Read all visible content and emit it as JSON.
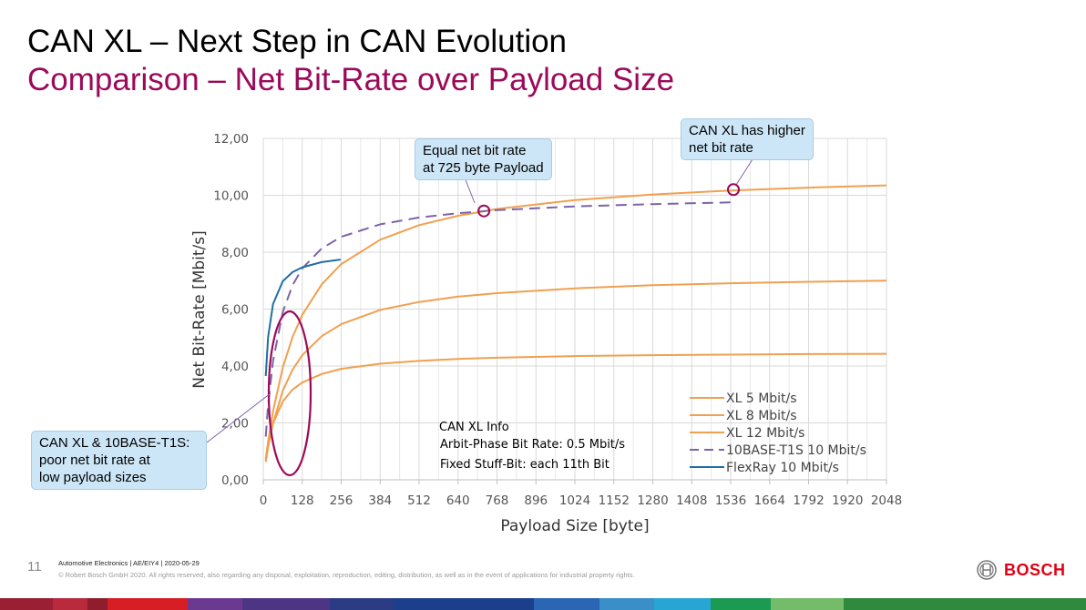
{
  "header": {
    "title": "CAN XL – Next Step in CAN Evolution",
    "subtitle": "Comparison – Net Bit-Rate over Payload Size"
  },
  "colors": {
    "title": "#000000",
    "subtitle": "#9b0a5a",
    "xl": "#f0a050",
    "tenbase": "#7d64a8",
    "flexray": "#1f6fa3",
    "marker": "#9b0a5a",
    "callout_bg": "#cde6f7"
  },
  "chart_data": {
    "type": "line",
    "title": "",
    "xlabel": "Payload Size [byte]",
    "ylabel": "Net Bit-Rate  [Mbit/s]",
    "xlim": [
      0,
      2048
    ],
    "ylim": [
      0,
      12
    ],
    "x_ticks": [
      "0",
      "128",
      "256",
      "384",
      "512",
      "640",
      "768",
      "896",
      "1024",
      "1152",
      "1280",
      "1408",
      "1536",
      "1664",
      "1792",
      "1920",
      "2048"
    ],
    "y_ticks": [
      "0,00",
      "2,00",
      "4,00",
      "6,00",
      "8,00",
      "10,00",
      "12,00"
    ],
    "grid": true,
    "legend_position": "bottom-right",
    "series": [
      {
        "name": "XL 5 Mbit/s",
        "color": "#f0a050",
        "dash": false,
        "x": [
          8,
          16,
          32,
          64,
          96,
          128,
          192,
          256,
          384,
          512,
          640,
          768,
          1024,
          1280,
          1536,
          1792,
          2048
        ],
        "y": [
          0.74,
          1.27,
          1.98,
          2.76,
          3.17,
          3.42,
          3.72,
          3.9,
          4.08,
          4.18,
          4.25,
          4.29,
          4.35,
          4.38,
          4.4,
          4.42,
          4.43
        ]
      },
      {
        "name": "XL 8 Mbit/s",
        "color": "#f0a050",
        "dash": false,
        "x": [
          8,
          16,
          32,
          64,
          96,
          128,
          192,
          256,
          384,
          512,
          640,
          768,
          1024,
          1280,
          1536,
          1792,
          2048
        ],
        "y": [
          0.63,
          1.15,
          1.99,
          3.13,
          3.87,
          4.38,
          5.05,
          5.47,
          5.97,
          6.25,
          6.44,
          6.56,
          6.73,
          6.84,
          6.91,
          6.96,
          7.0
        ]
      },
      {
        "name": "XL 12 Mbit/s",
        "color": "#f0a050",
        "dash": false,
        "x": [
          8,
          16,
          32,
          64,
          96,
          128,
          192,
          256,
          384,
          512,
          640,
          768,
          1024,
          1280,
          1536,
          1792,
          2048
        ],
        "y": [
          0.72,
          1.35,
          2.41,
          3.95,
          5.02,
          5.8,
          6.87,
          7.58,
          8.44,
          8.95,
          9.28,
          9.52,
          9.83,
          10.03,
          10.17,
          10.27,
          10.35
        ]
      },
      {
        "name": "10BASE-T1S 10 Mbit/s",
        "color": "#7d64a8",
        "dash": true,
        "x": [
          8,
          16,
          32,
          64,
          96,
          128,
          192,
          256,
          384,
          512,
          640,
          768,
          1024,
          1280,
          1536
        ],
        "y": [
          1.52,
          2.65,
          4.18,
          5.9,
          6.84,
          7.43,
          8.13,
          8.54,
          8.98,
          9.22,
          9.37,
          9.48,
          9.61,
          9.69,
          9.75
        ]
      },
      {
        "name": "FlexRay 10 Mbit/s",
        "color": "#1f6fa3",
        "dash": false,
        "x": [
          8,
          16,
          32,
          64,
          96,
          128,
          192,
          254
        ],
        "y": [
          3.65,
          5.02,
          6.18,
          6.98,
          7.3,
          7.47,
          7.65,
          7.74
        ]
      }
    ],
    "markers": [
      {
        "label": "equal-point",
        "x": 725,
        "y": 9.45
      },
      {
        "label": "higher-point",
        "x": 1545,
        "y": 10.2
      }
    ],
    "annotations": {
      "equal": [
        "Equal net bit rate",
        "at 725 byte Payload"
      ],
      "higher": [
        "CAN XL has higher",
        "net bit rate"
      ],
      "poor": [
        "CAN XL & 10BASE-T1S:",
        "poor net bit rate at",
        "low payload sizes"
      ],
      "info": [
        "CAN XL Info",
        "Arbit-Phase Bit Rate: 0.5 Mbit/s",
        "Fixed Stuff-Bit: each 11th Bit"
      ]
    }
  },
  "footer": {
    "page_number": "11",
    "line1": "Automotive Electronics | AE/EIY4 | 2020-05-29",
    "line2": "© Robert Bosch GmbH 2020. All rights reserved, also regarding any disposal, exploitation, reproduction, editing, distribution, as well as in the event of applications for industrial property rights.",
    "logo_text": "BOSCH",
    "stripe_colors": [
      "#9a1f33",
      "#b82a3c",
      "#8f1d2e",
      "#d81e25",
      "#6b3a90",
      "#4e3583",
      "#2b3c84",
      "#1c3f8b",
      "#2a66b3",
      "#3b8fc9",
      "#27a6d3",
      "#1b9a52",
      "#74bb6a",
      "#2f8a3e"
    ]
  }
}
